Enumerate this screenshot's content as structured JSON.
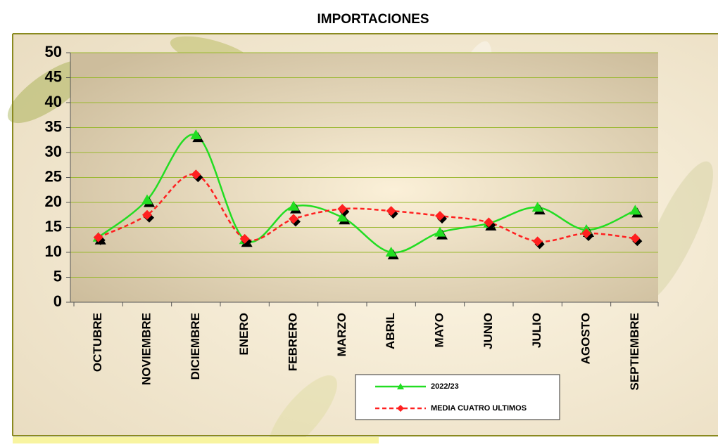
{
  "chart_data": {
    "type": "line",
    "title": "IMPORTACIONES",
    "categories": [
      "OCTUBRE",
      "NOVIEMBRE",
      "DICIEMBRE",
      "ENERO",
      "FEBRERO",
      "MARZO",
      "ABRIL",
      "MAYO",
      "JUNIO",
      "JULIO",
      "AGOSTO",
      "SEPTIEMBRE"
    ],
    "series": [
      {
        "name": "2022/23",
        "color": "#22dd22",
        "marker": "triangle",
        "dashed": false,
        "values": [
          13,
          20.5,
          33.5,
          12.5,
          19.2,
          17,
          10,
          14,
          15.8,
          19,
          14.5,
          18.4
        ]
      },
      {
        "name": "MEDIA CUATRO ULTIMOS",
        "color": "#ff2020",
        "marker": "diamond",
        "dashed": true,
        "values": [
          13,
          17.5,
          25.6,
          12.7,
          16.7,
          18.7,
          18.3,
          17.3,
          16,
          12.2,
          13.8,
          12.8
        ]
      }
    ],
    "ylim": [
      0,
      50
    ],
    "yticks": [
      0,
      5,
      10,
      15,
      20,
      25,
      30,
      35,
      40,
      45,
      50
    ],
    "grid": true,
    "smooth": true
  }
}
